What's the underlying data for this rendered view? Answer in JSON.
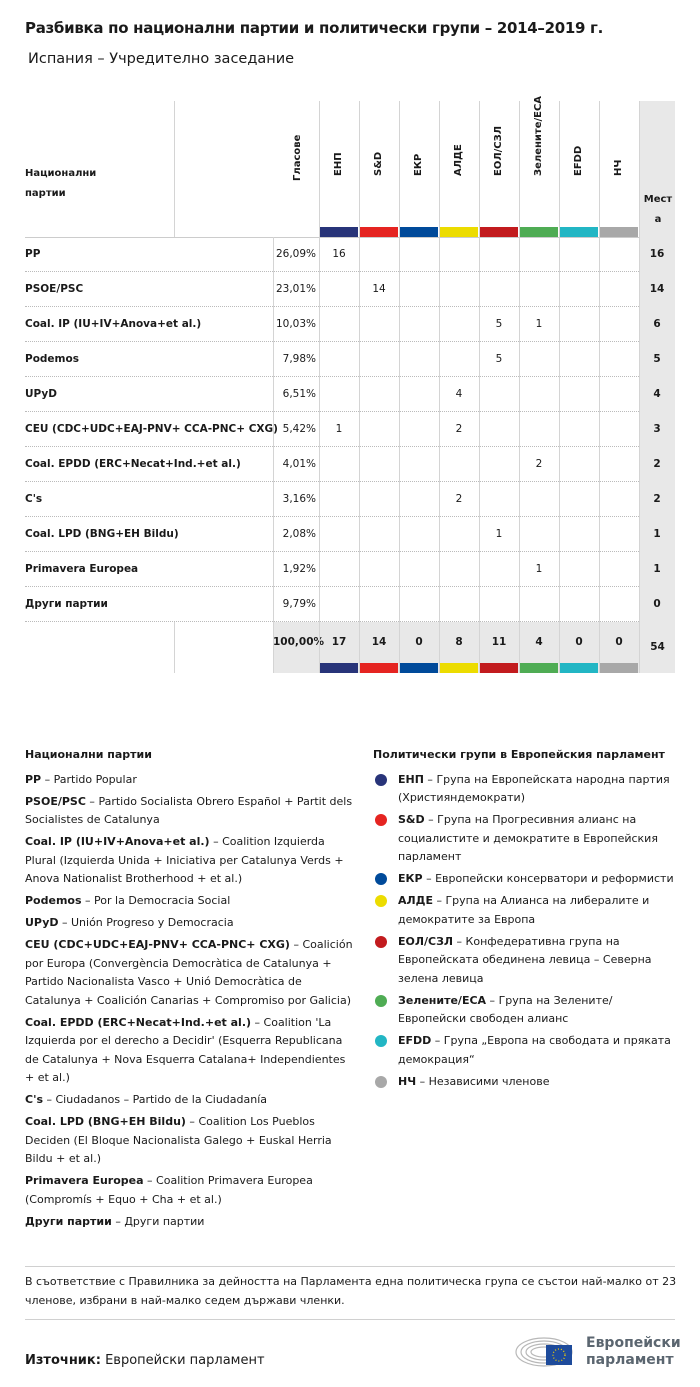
{
  "title": "Разбивка по национални партии и политически групи – 2014–2019 г.",
  "subtitle": "Испания – Учредително заседание",
  "table": {
    "header_party": "Национални партии",
    "header_votes": "Гласове",
    "header_seats": "Места",
    "groups": [
      {
        "label": "ЕНП",
        "color": "#283479"
      },
      {
        "label": "S&D",
        "color": "#e52421"
      },
      {
        "label": "ЕКР",
        "color": "#004a9a"
      },
      {
        "label": "АЛДЕ",
        "color": "#ecdc00"
      },
      {
        "label": "ЕОЛ/СЗЛ",
        "color": "#c21b1e"
      },
      {
        "label": "Зелените/ЕСА",
        "color": "#4fac54"
      },
      {
        "label": "EFDD",
        "color": "#22b6c4"
      },
      {
        "label": "НЧ",
        "color": "#a8a8a8"
      }
    ],
    "rows": [
      {
        "party": "PP",
        "votes": "26,09%",
        "groups": [
          "16",
          "",
          "",
          "",
          "",
          "",
          "",
          ""
        ],
        "seats": "16"
      },
      {
        "party": "PSOE/PSC",
        "votes": "23,01%",
        "groups": [
          "",
          "14",
          "",
          "",
          "",
          "",
          "",
          ""
        ],
        "seats": "14"
      },
      {
        "party": "Coal. IP (IU+IV+Anova+et al.)",
        "votes": "10,03%",
        "groups": [
          "",
          "",
          "",
          "",
          "5",
          "1",
          "",
          ""
        ],
        "seats": "6"
      },
      {
        "party": "Podemos",
        "votes": "7,98%",
        "groups": [
          "",
          "",
          "",
          "",
          "5",
          "",
          "",
          ""
        ],
        "seats": "5"
      },
      {
        "party": "UPyD",
        "votes": "6,51%",
        "groups": [
          "",
          "",
          "",
          "4",
          "",
          "",
          "",
          ""
        ],
        "seats": "4"
      },
      {
        "party": "CEU (CDC+UDC+EAJ-PNV+ CCA-PNC+ CXG)",
        "votes": "5,42%",
        "groups": [
          "1",
          "",
          "",
          "2",
          "",
          "",
          "",
          ""
        ],
        "seats": "3"
      },
      {
        "party": "Coal. EPDD (ERC+Necat+Ind.+et al.)",
        "votes": "4,01%",
        "groups": [
          "",
          "",
          "",
          "",
          "",
          "2",
          "",
          ""
        ],
        "seats": "2"
      },
      {
        "party": "C's",
        "votes": "3,16%",
        "groups": [
          "",
          "",
          "",
          "2",
          "",
          "",
          "",
          ""
        ],
        "seats": "2"
      },
      {
        "party": "Coal. LPD (BNG+EH Bildu)",
        "votes": "2,08%",
        "groups": [
          "",
          "",
          "",
          "",
          "1",
          "",
          "",
          ""
        ],
        "seats": "1"
      },
      {
        "party": "Primavera Europea",
        "votes": "1,92%",
        "groups": [
          "",
          "",
          "",
          "",
          "",
          "1",
          "",
          ""
        ],
        "seats": "1"
      },
      {
        "party": "Други партии",
        "votes": "9,79%",
        "groups": [
          "",
          "",
          "",
          "",
          "",
          "",
          "",
          ""
        ],
        "seats": "0"
      }
    ],
    "total": {
      "votes": "100,00%",
      "groups": [
        "17",
        "14",
        "0",
        "8",
        "11",
        "4",
        "0",
        "0"
      ],
      "seats": "54"
    }
  },
  "legend_parties": {
    "heading": "Национални партии",
    "items": [
      {
        "abbr": "PP",
        "desc": "Partido Popular"
      },
      {
        "abbr": "PSOE/PSC",
        "desc": "Partido Socialista Obrero Español + Partit dels Socialistes de Catalunya"
      },
      {
        "abbr": "Coal. IP (IU+IV+Anova+et al.)",
        "desc": "Coalition Izquierda Plural (Izquierda Unida + Iniciativa per Catalunya Verds + Anova Nationalist Brotherhood + et al.)"
      },
      {
        "abbr": "Podemos",
        "desc": "Por la Democracia Social"
      },
      {
        "abbr": "UPyD",
        "desc": "Unión Progreso y Democracia"
      },
      {
        "abbr": "CEU (CDC+UDC+EAJ-PNV+ CCA-PNC+ CXG)",
        "desc": "Coalición por Europa (Convergència Democràtica de Catalunya + Partido Nacionalista Vasco + Unió Democràtica de Catalunya + Coalición Canarias + Compromiso por Galicia)"
      },
      {
        "abbr": "Coal. EPDD (ERC+Necat+Ind.+et al.)",
        "desc": "Coalition 'La Izquierda por el derecho a Decidir' (Esquerra Republicana de Catalunya + Nova Esquerra Catalana+ Independientes + et al.)"
      },
      {
        "abbr": "C's",
        "desc": "Ciudadanos – Partido de la Ciudadanía"
      },
      {
        "abbr": "Coal. LPD (BNG+EH Bildu)",
        "desc": "Coalition Los Pueblos Deciden (El Bloque Nacionalista Galego + Euskal Herria Bildu + et al.)"
      },
      {
        "abbr": "Primavera Europea",
        "desc": "Coalition Primavera Europea (Compromís + Equo + Cha + et al.)"
      },
      {
        "abbr": "Други партии",
        "desc": "Други партии"
      }
    ]
  },
  "legend_groups": {
    "heading": "Политически групи в Европейския парламент",
    "items": [
      {
        "abbr": "ЕНП",
        "desc": "Група на Европейската народна партия (Християндемократи)",
        "color": "#283479"
      },
      {
        "abbr": "S&D",
        "desc": "Група на Прогресивния алианс на социалистите и демократите в Европейския парламент",
        "color": "#e52421"
      },
      {
        "abbr": "ЕКР",
        "desc": "Европейски консерватори и реформисти",
        "color": "#004a9a"
      },
      {
        "abbr": "АЛДЕ",
        "desc": "Група на Алианса на либералите и демократите за Европа",
        "color": "#ecdc00"
      },
      {
        "abbr": "ЕОЛ/СЗЛ",
        "desc": "Конфедеративна група на Европейската обединена левица – Северна зелена левица",
        "color": "#c21b1e"
      },
      {
        "abbr": "Зелените/ЕСА",
        "desc": "Група на Зелените/ Европейски свободен алианс",
        "color": "#4fac54"
      },
      {
        "abbr": "EFDD",
        "desc": "Група „Европа на свободата и пряката демокрация“",
        "color": "#22b6c4"
      },
      {
        "abbr": "НЧ",
        "desc": "Независими членове",
        "color": "#a8a8a8"
      }
    ]
  },
  "note": "В съответствие с Правилника за дейността на Парламента една политическа група се състои най-малко от 23 членове, избрани в най-малко седем държави членки.",
  "source": {
    "label": "Източник:",
    "value": "Европейски парламент"
  },
  "logo": {
    "text_line1": "Европейски",
    "text_line2": "парламент"
  }
}
